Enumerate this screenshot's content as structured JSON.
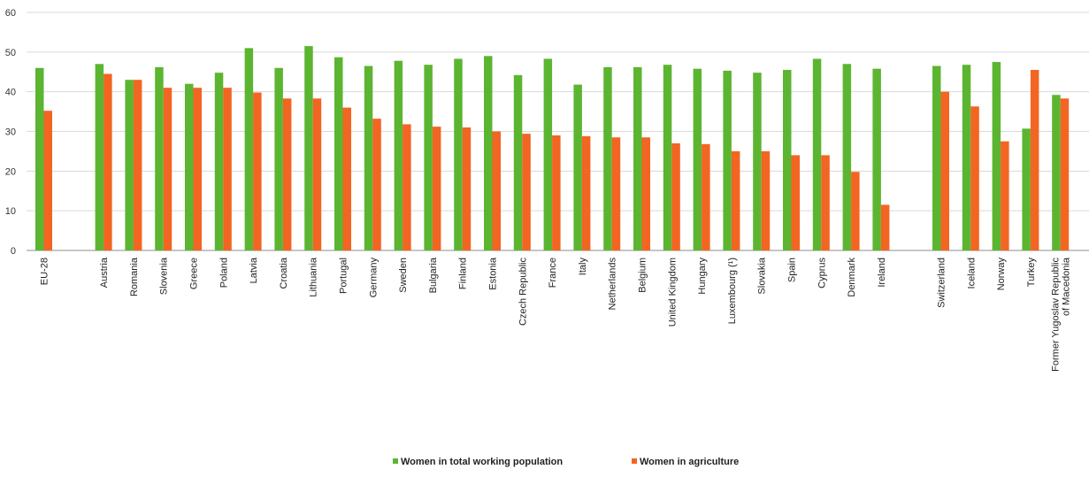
{
  "chart_data": {
    "type": "bar",
    "title": "",
    "xlabel": "",
    "ylabel": "",
    "ylim": [
      0,
      60
    ],
    "yticks": [
      0,
      10,
      20,
      30,
      40,
      50,
      60
    ],
    "grid": true,
    "legend_position": "bottom-center",
    "categories": [
      "EU-28",
      "",
      "Austria",
      "Romania",
      "Slovenia",
      "Greece",
      "Poland",
      "Latvia",
      "Croatia",
      "Lithuania",
      "Portugal",
      "Germany",
      "Sweden",
      "Bulgaria",
      "Finland",
      "Estonia",
      "Czech Republic",
      "France",
      "Italy",
      "Netherlands",
      "Belgium",
      "United Kingdom",
      "Hungary",
      "Luxembourg (¹)",
      "Slovakia",
      "Spain",
      "Cyprus",
      "Denmark",
      "Ireland",
      "",
      "Switzerland",
      "Iceland",
      "Norway",
      "Turkey",
      "Former Yugoslav Republic of Macedonia"
    ],
    "category_lines": {
      "34": [
        "Former Yugoslav Republic",
        "of Macedonia"
      ]
    },
    "series": [
      {
        "name": "Women in total working population",
        "color": "#5cb531",
        "values": [
          46,
          null,
          47,
          43,
          46.2,
          42,
          44.8,
          51,
          46,
          51.5,
          48.7,
          46.5,
          47.8,
          46.8,
          48.3,
          49,
          44.2,
          48.3,
          41.8,
          46.2,
          46.2,
          46.8,
          45.8,
          45.3,
          44.8,
          45.5,
          48.3,
          47,
          45.8,
          null,
          46.5,
          46.8,
          47.5,
          30.7,
          39.2
        ]
      },
      {
        "name": "Women in agriculture",
        "color": "#f26522",
        "values": [
          35.2,
          null,
          44.5,
          43,
          41,
          41,
          41,
          39.8,
          38.3,
          38.3,
          36,
          33.2,
          31.8,
          31.2,
          31,
          30,
          29.4,
          29,
          28.8,
          28.5,
          28.5,
          27,
          26.8,
          25,
          25,
          24,
          24,
          19.8,
          11.5,
          null,
          40,
          36.3,
          27.5,
          45.5,
          38.3
        ]
      }
    ]
  }
}
